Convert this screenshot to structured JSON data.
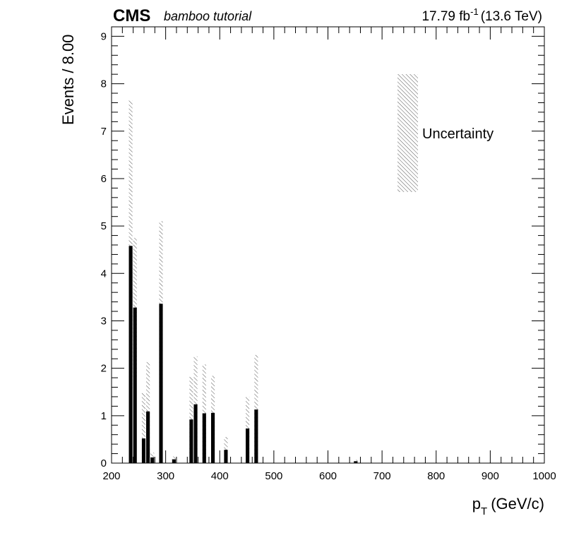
{
  "header": {
    "experiment": "CMS",
    "tag": "bamboo tutorial",
    "lumi_value": "17.79 fb",
    "lumi_exp": "-1",
    "energy": "(13.6 TeV)"
  },
  "axes": {
    "ylabel": "Events / 8.00",
    "xlabel_main": "p",
    "xlabel_sub": "T",
    "xlabel_unit": "(GeV/c)"
  },
  "legend": {
    "uncertainty_label": "Uncertainty"
  },
  "colors": {
    "fill": "#000000",
    "hatch": "#555555",
    "axis": "#000000"
  },
  "chart_data": {
    "type": "bar",
    "xlabel": "p_T (GeV/c)",
    "ylabel": "Events / 8.00",
    "xlim": [
      200,
      1000
    ],
    "ylim": [
      0,
      9.2
    ],
    "bin_width": 8,
    "x_ticks": [
      200,
      300,
      400,
      500,
      600,
      700,
      800,
      900,
      1000
    ],
    "y_ticks": [
      0,
      1,
      2,
      3,
      4,
      5,
      6,
      7,
      8,
      9
    ],
    "bins": [
      {
        "x": 232,
        "value": 4.58,
        "unc_low": 1.52,
        "unc_high": 7.65
      },
      {
        "x": 240,
        "value": 3.28,
        "unc_low": 1.78,
        "unc_high": 4.75
      },
      {
        "x": 256,
        "value": 0.52,
        "unc_low": 0.0,
        "unc_high": 1.48
      },
      {
        "x": 264,
        "value": 1.09,
        "unc_low": 0.05,
        "unc_high": 2.13
      },
      {
        "x": 272,
        "value": 0.12,
        "unc_low": 0.0,
        "unc_high": 0.22
      },
      {
        "x": 288,
        "value": 3.36,
        "unc_low": 1.58,
        "unc_high": 5.1
      },
      {
        "x": 312,
        "value": 0.08,
        "unc_low": 0.0,
        "unc_high": 0.14
      },
      {
        "x": 344,
        "value": 0.92,
        "unc_low": 0.0,
        "unc_high": 1.82
      },
      {
        "x": 352,
        "value": 1.24,
        "unc_low": 0.25,
        "unc_high": 2.25
      },
      {
        "x": 368,
        "value": 1.05,
        "unc_low": 0.05,
        "unc_high": 2.08
      },
      {
        "x": 384,
        "value": 1.06,
        "unc_low": 0.22,
        "unc_high": 1.84
      },
      {
        "x": 408,
        "value": 0.28,
        "unc_low": 0.0,
        "unc_high": 0.55
      },
      {
        "x": 448,
        "value": 0.73,
        "unc_low": 0.0,
        "unc_high": 1.4
      },
      {
        "x": 464,
        "value": 1.13,
        "unc_low": 0.0,
        "unc_high": 2.28
      },
      {
        "x": 648,
        "value": 0.04,
        "unc_low": 0.0,
        "unc_high": 0.07
      }
    ]
  }
}
